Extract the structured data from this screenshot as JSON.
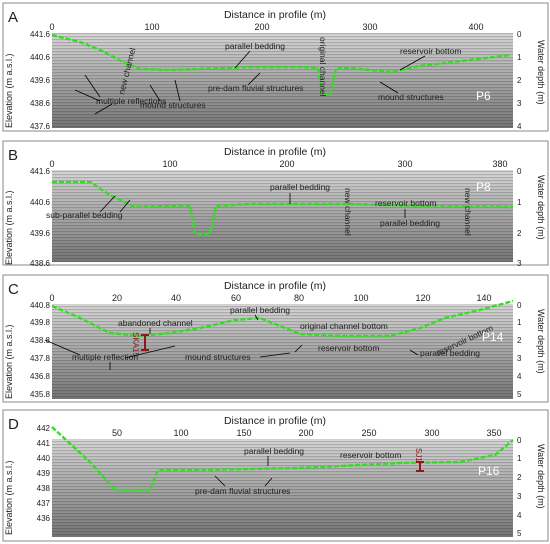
{
  "panels": [
    {
      "letter": "A",
      "profile": "P6",
      "xlabel": "Distance in profile (m)",
      "ylabel_left": "Elevation (m a.s.l.)",
      "ylabel_right": "Water depth (m)",
      "x_ticks": [
        "0",
        "100",
        "200",
        "300",
        "400"
      ],
      "elev_ticks": [
        "441.6",
        "440.6",
        "439.6",
        "438.6",
        "437.6"
      ],
      "depth_ticks": [
        "0",
        "1",
        "2",
        "3",
        "4"
      ],
      "annotations": [
        "parallel bedding",
        "original channel",
        "reservoir bottom",
        "new channel",
        "pre-dam fluvial structures",
        "mound structures",
        "mound structures",
        "multiple reflections"
      ]
    },
    {
      "letter": "B",
      "profile": "P8",
      "xlabel": "Distance in profile (m)",
      "ylabel_left": "Elevation (m a.s.l.)",
      "ylabel_right": "Water depth (m)",
      "x_ticks": [
        "0",
        "100",
        "200",
        "300",
        "380"
      ],
      "elev_ticks": [
        "441.6",
        "440.6",
        "439.6",
        "438.6"
      ],
      "depth_ticks": [
        "0",
        "1",
        "2",
        "3"
      ],
      "annotations": [
        "parallel bedding",
        "sub-parallel bedding",
        "reservoir bottom",
        "parallel bedding",
        "new channel",
        "new channel"
      ]
    },
    {
      "letter": "C",
      "profile": "P14",
      "xlabel": "Distance in profile (m)",
      "ylabel_left": "Elevation (m a.s.l.)",
      "ylabel_right": "Water depth (m)",
      "x_ticks": [
        "0",
        "20",
        "40",
        "60",
        "80",
        "100",
        "120",
        "140"
      ],
      "elev_ticks": [
        "440.8",
        "439.8",
        "438.8",
        "437.8",
        "436.8",
        "435.8"
      ],
      "depth_ticks": [
        "0",
        "1",
        "2",
        "3",
        "4",
        "5"
      ],
      "core_label": "SKA15",
      "annotations": [
        "abandoned channel",
        "parallel bedding",
        "original channel bottom",
        "reservoir bottom",
        "multiple reflection",
        "mound structures",
        "reservoir bottom",
        "parallel bedding"
      ]
    },
    {
      "letter": "D",
      "profile": "P16",
      "xlabel": "Distance in profile (m)",
      "ylabel_left": "Elevation (m a.s.l.)",
      "ylabel_right": "Water depth (m)",
      "x_ticks": [
        "50",
        "100",
        "150",
        "200",
        "250",
        "300",
        "350"
      ],
      "elev_ticks": [
        "442",
        "441",
        "440",
        "439",
        "438",
        "437",
        "436"
      ],
      "depth_ticks": [
        "0",
        "1",
        "2",
        "3",
        "4",
        "5"
      ],
      "core_label": "SJ1",
      "annotations": [
        "parallel bedding",
        "reservoir bottom",
        "pre-dam fluvial structures"
      ]
    }
  ],
  "colors": {
    "reflector": "#33dd22",
    "core": "#8b1a1a",
    "frame": "#8a8a8a"
  }
}
